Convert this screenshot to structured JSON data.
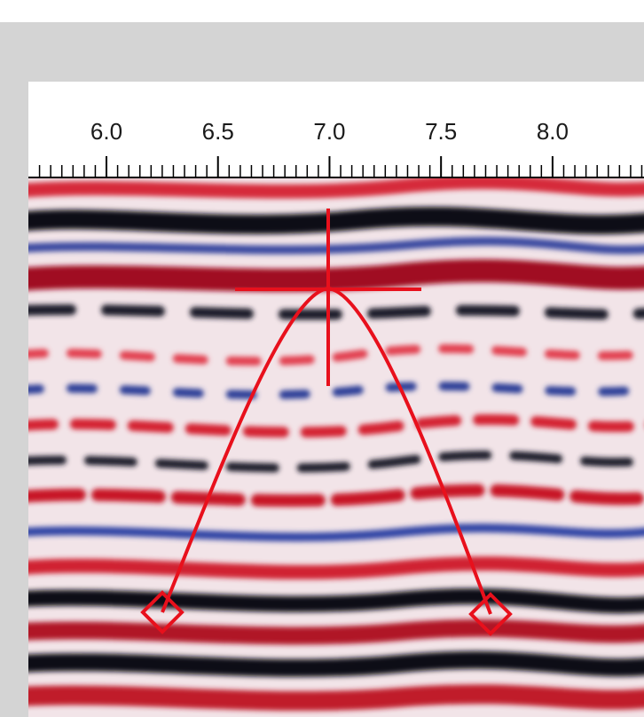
{
  "ruler": {
    "xlim": [
      5.65,
      8.41
    ],
    "xticks": [
      {
        "value": 6,
        "label": "6.0"
      },
      {
        "value": 6.5,
        "label": "6.5"
      },
      {
        "value": 7,
        "label": "7.0"
      },
      {
        "value": 7.5,
        "label": "7.5"
      },
      {
        "value": 8,
        "label": "8.0"
      }
    ]
  }
}
